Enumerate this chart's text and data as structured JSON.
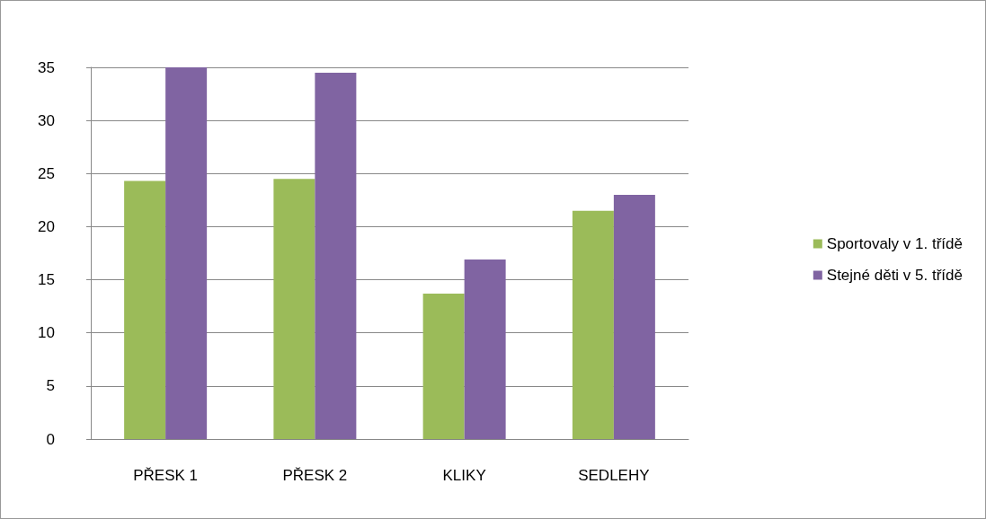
{
  "chart_data": {
    "type": "bar",
    "categories": [
      "PŘESK 1",
      "PŘESK 2",
      "KLIKY",
      "SEDLEHY"
    ],
    "series": [
      {
        "name": "Sportovaly v 1. třídě",
        "color": "#9bbb59",
        "values": [
          24.3,
          24.5,
          13.7,
          21.5
        ]
      },
      {
        "name": "Stejné děti v 5. třídě",
        "color": "#8064a2",
        "values": [
          35,
          34.5,
          16.9,
          23
        ]
      }
    ],
    "ylim": [
      0,
      35
    ],
    "yticks": [
      0,
      5,
      10,
      15,
      20,
      25,
      30,
      35
    ],
    "grid": true,
    "legend": "right"
  }
}
